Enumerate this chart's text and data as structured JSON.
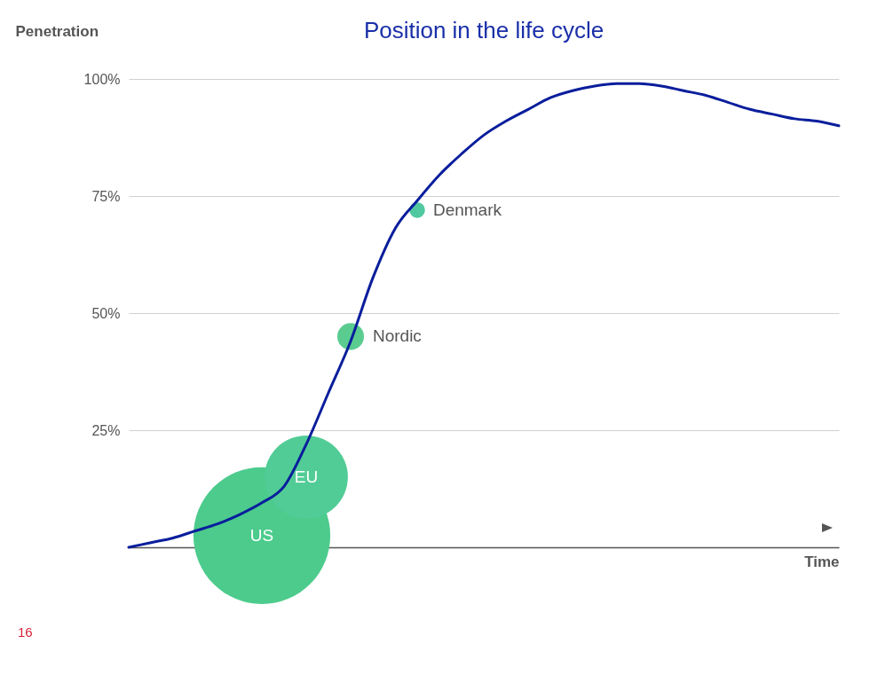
{
  "chart_data": {
    "type": "line",
    "title": "Position in the life cycle",
    "ylabel": "Penetration",
    "xlabel": "Time",
    "categories": [
      null,
      null,
      null,
      null,
      null,
      null,
      null,
      null,
      null,
      null,
      null,
      null,
      null,
      null,
      null,
      null,
      null,
      null,
      null,
      null,
      null,
      null,
      null,
      null,
      null,
      null,
      null,
      null,
      null,
      null,
      null,
      null,
      null
    ],
    "ylim": [
      0,
      100
    ],
    "yticks": [
      {
        "value": 25,
        "label": "25%"
      },
      {
        "value": 50,
        "label": "50%"
      },
      {
        "value": 75,
        "label": "75%"
      },
      {
        "value": 100,
        "label": "100%"
      }
    ],
    "grid": "y",
    "series": [
      {
        "type": "line",
        "color": "#0a1e9c",
        "values": [
          0,
          1,
          2,
          3.5,
          5,
          7,
          9.5,
          13,
          22,
          33,
          44,
          57.5,
          68,
          74,
          79.5,
          84,
          88,
          91,
          93.5,
          96,
          97.5,
          98.5,
          99,
          99,
          98.5,
          97.5,
          96.5,
          95,
          93.5,
          92.5,
          91.5,
          91,
          90
        ]
      },
      {
        "type": "bubble",
        "name": "US",
        "color": "#4ccb8c",
        "values": [
          null,
          null,
          null,
          null,
          null,
          null,
          2.5,
          null,
          null,
          null,
          null,
          null,
          null,
          null,
          null,
          null,
          null,
          null,
          null,
          null,
          null,
          null,
          null,
          null,
          null,
          null,
          null,
          null,
          null,
          null,
          null,
          null,
          null
        ],
        "sizes": [
          null,
          null,
          null,
          null,
          null,
          null,
          1,
          null,
          null,
          null,
          null,
          null,
          null,
          null,
          null,
          null,
          null,
          null,
          null,
          null,
          null,
          null,
          null,
          null,
          null,
          null,
          null,
          null,
          null,
          null,
          null,
          null,
          null
        ]
      },
      {
        "type": "bubble",
        "name": "EU",
        "color": "#52cc96",
        "values": [
          null,
          null,
          null,
          null,
          null,
          null,
          null,
          null,
          15,
          null,
          null,
          null,
          null,
          null,
          null,
          null,
          null,
          null,
          null,
          null,
          null,
          null,
          null,
          null,
          null,
          null,
          null,
          null,
          null,
          null,
          null,
          null,
          null
        ],
        "sizes": [
          null,
          null,
          null,
          null,
          null,
          null,
          null,
          null,
          0.37,
          null,
          null,
          null,
          null,
          null,
          null,
          null,
          null,
          null,
          null,
          null,
          null,
          null,
          null,
          null,
          null,
          null,
          null,
          null,
          null,
          null,
          null,
          null,
          null
        ]
      },
      {
        "type": "bubble",
        "name": "Nordic",
        "color": "#5acc90",
        "values": [
          null,
          null,
          null,
          null,
          null,
          null,
          null,
          null,
          null,
          null,
          45,
          null,
          null,
          null,
          null,
          null,
          null,
          null,
          null,
          null,
          null,
          null,
          null,
          null,
          null,
          null,
          null,
          null,
          null,
          null,
          null,
          null,
          null
        ],
        "sizes": [
          null,
          null,
          null,
          null,
          null,
          null,
          null,
          null,
          null,
          null,
          0.038,
          null,
          null,
          null,
          null,
          null,
          null,
          null,
          null,
          null,
          null,
          null,
          null,
          null,
          null,
          null,
          null,
          null,
          null,
          null,
          null,
          null,
          null
        ]
      },
      {
        "type": "bubble",
        "name": "Denmark",
        "color": "#50c8a0",
        "values": [
          null,
          null,
          null,
          null,
          null,
          null,
          null,
          null,
          null,
          null,
          null,
          null,
          null,
          72,
          null,
          null,
          null,
          null,
          null,
          null,
          null,
          null,
          null,
          null,
          null,
          null,
          null,
          null,
          null,
          null,
          null,
          null,
          null
        ],
        "sizes": [
          null,
          null,
          null,
          null,
          null,
          null,
          null,
          null,
          null,
          null,
          null,
          null,
          null,
          0.013,
          null,
          null,
          null,
          null,
          null,
          null,
          null,
          null,
          null,
          null,
          null,
          null,
          null,
          null,
          null,
          null,
          null,
          null,
          null
        ]
      }
    ],
    "annotations": [
      "16"
    ]
  }
}
